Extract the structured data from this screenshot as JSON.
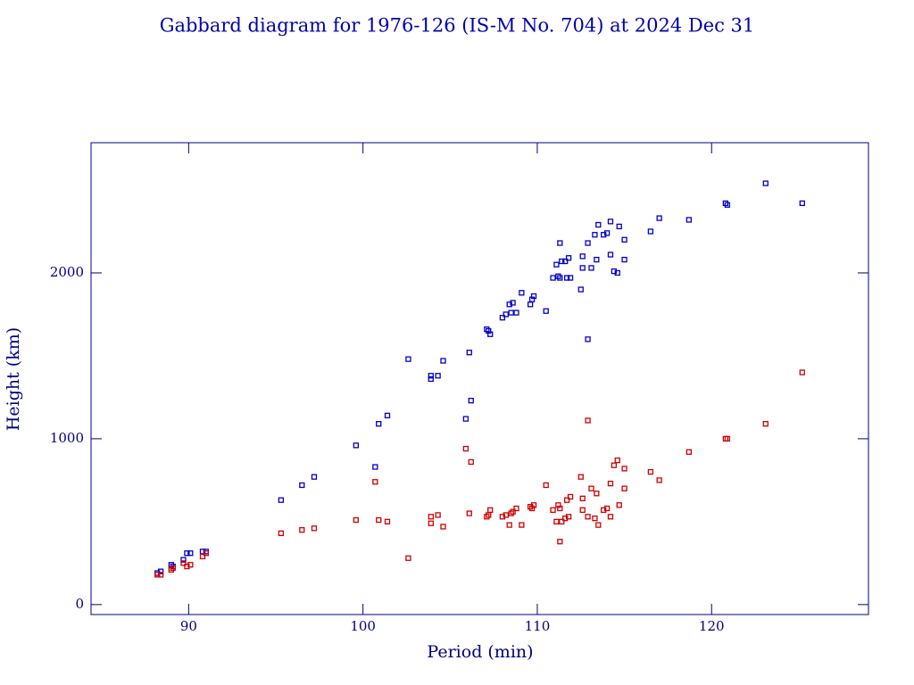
{
  "chart_data": {
    "type": "scatter",
    "title": "Gabbard diagram for 1976-126 (IS-M No. 704) at 2024 Dec 31",
    "x_label": "Period (min)",
    "y_label": "Height (km)",
    "xlim": [
      84.4,
      129
    ],
    "ylim": [
      -60,
      2785
    ],
    "xticks": [
      90,
      100,
      110,
      120
    ],
    "yticks": [
      0,
      1000,
      2000
    ],
    "x": [
      88.2,
      88.4,
      89.0,
      89.1,
      89.7,
      89.9,
      90.1,
      90.8,
      91.0,
      95.3,
      96.5,
      97.2,
      99.6,
      100.7,
      100.9,
      101.4,
      102.6,
      103.9,
      103.9,
      104.3,
      104.6,
      105.9,
      106.1,
      106.2,
      107.1,
      107.2,
      107.3,
      108.0,
      108.2,
      108.4,
      108.5,
      108.6,
      108.8,
      109.1,
      109.6,
      109.7,
      109.8,
      110.5,
      110.9,
      111.1,
      111.2,
      111.3,
      111.3,
      111.4,
      111.6,
      111.7,
      111.8,
      111.9,
      112.5,
      112.6,
      112.6,
      112.9,
      112.9,
      113.1,
      113.3,
      113.4,
      113.5,
      113.8,
      114.0,
      114.2,
      114.2,
      114.4,
      114.6,
      114.7,
      115.0,
      115.0,
      116.5,
      117.0,
      118.7,
      120.8,
      120.9,
      123.1,
      125.2
    ],
    "series": [
      {
        "color": "#0000cc",
        "values": [
          190,
          200,
          240,
          230,
          270,
          310,
          310,
          320,
          320,
          630,
          720,
          770,
          960,
          830,
          1090,
          1140,
          1480,
          1380,
          1360,
          1380,
          1470,
          1120,
          1520,
          1230,
          1660,
          1650,
          1630,
          1730,
          1750,
          1810,
          1760,
          1820,
          1760,
          1880,
          1810,
          1840,
          1860,
          1770,
          1970,
          2050,
          1980,
          1970,
          2180,
          2070,
          2070,
          1970,
          2090,
          1970,
          1900,
          2100,
          2030,
          1600,
          2180,
          2030,
          2230,
          2080,
          2290,
          2230,
          2240,
          2110,
          2310,
          2010,
          2000,
          2280,
          2080,
          2200,
          2250,
          2330,
          2320,
          2420,
          2410,
          2540,
          2420
        ]
      },
      {
        "color": "#cc0000",
        "values": [
          180,
          180,
          210,
          220,
          250,
          230,
          240,
          290,
          310,
          430,
          450,
          460,
          510,
          740,
          510,
          500,
          280,
          490,
          530,
          540,
          470,
          940,
          550,
          860,
          530,
          540,
          570,
          530,
          540,
          480,
          550,
          560,
          580,
          480,
          590,
          580,
          600,
          720,
          570,
          500,
          600,
          580,
          380,
          500,
          520,
          630,
          530,
          650,
          770,
          570,
          640,
          1110,
          530,
          700,
          520,
          670,
          480,
          570,
          580,
          730,
          530,
          840,
          870,
          600,
          820,
          700,
          800,
          750,
          920,
          1000,
          1000,
          1090,
          1400
        ]
      }
    ]
  }
}
